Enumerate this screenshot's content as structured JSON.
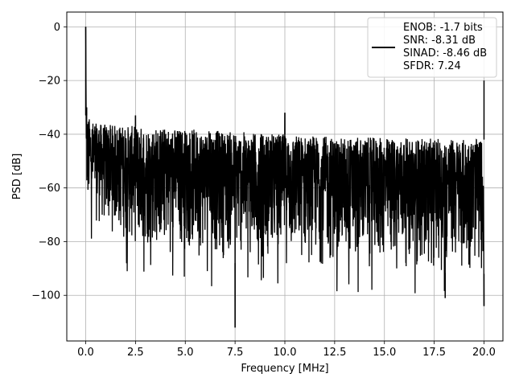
{
  "chart_data": {
    "type": "line",
    "title": "",
    "xlabel": "Frequency [MHz]",
    "ylabel": "PSD [dB]",
    "xlim": [
      -0.95,
      20.95
    ],
    "ylim": [
      -117,
      5.5
    ],
    "xticks": [
      0.0,
      2.5,
      5.0,
      7.5,
      10.0,
      12.5,
      15.0,
      17.5,
      20.0
    ],
    "xtick_labels": [
      "0.0",
      "2.5",
      "5.0",
      "7.5",
      "10.0",
      "12.5",
      "15.0",
      "17.5",
      "20.0"
    ],
    "yticks": [
      0,
      -20,
      -40,
      -60,
      -80,
      -100
    ],
    "ytick_labels": [
      "0",
      "−20",
      "−40",
      "−60",
      "−80",
      "−100"
    ],
    "grid": true,
    "legend_position": "top-right",
    "line_color": "#000000",
    "series": [
      {
        "legend_lines": [
          "ENOB: -1.7 bits",
          "SNR: -8.31 dB",
          "SINAD: -8.46 dB",
          "SFDR: 7.24"
        ],
        "noise_floor": {
          "x_range": [
            0.0,
            20.0
          ],
          "upper_envelope": [
            [
              0.05,
              -33
            ],
            [
              0.5,
              -36
            ],
            [
              2.5,
              -37
            ],
            [
              7.5,
              -39
            ],
            [
              12.5,
              -41
            ],
            [
              20.0,
              -42
            ]
          ],
          "lower_envelope": [
            [
              0.05,
              -72
            ],
            [
              2.5,
              -84
            ],
            [
              10.0,
              -90
            ],
            [
              20.0,
              -92
            ]
          ]
        },
        "peaks": [
          {
            "x": 0.0,
            "y": 0.0
          },
          {
            "x": 0.05,
            "y": -30
          },
          {
            "x": 2.5,
            "y": -33
          },
          {
            "x": 10.0,
            "y": -32
          },
          {
            "x": 20.0,
            "y": -20
          }
        ],
        "dips": [
          {
            "x": 7.5,
            "y": -112
          },
          {
            "x": 18.05,
            "y": -101
          },
          {
            "x": 20.0,
            "y": -104
          }
        ]
      }
    ]
  }
}
